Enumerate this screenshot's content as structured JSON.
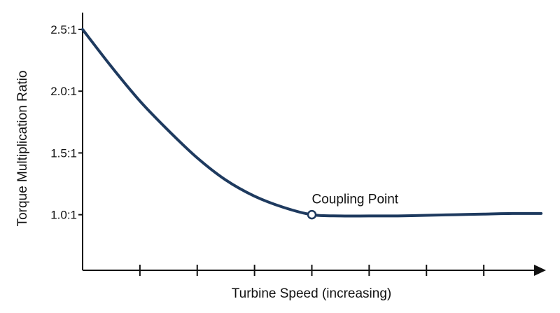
{
  "chart_data": {
    "type": "line",
    "title": "",
    "xlabel": "Turbine Speed (increasing)",
    "ylabel": "Torque Multiplication Ratio",
    "ylim": [
      0.55,
      2.5
    ],
    "xlim": [
      0,
      8
    ],
    "y_ticks": [
      {
        "value": 2.5,
        "label": "2.5:1"
      },
      {
        "value": 2.0,
        "label": "2.0:1"
      },
      {
        "value": 1.5,
        "label": "1.5:1"
      },
      {
        "value": 1.0,
        "label": "1.0:1"
      }
    ],
    "x_ticks": [
      1,
      2,
      3,
      4,
      5,
      6,
      7
    ],
    "x_tick_labels": [],
    "grid": false,
    "line_color": "#1e3a5f",
    "series": [
      {
        "x": [
          0,
          0.5,
          1,
          1.5,
          2,
          2.5,
          3,
          3.5,
          4,
          4.5,
          5,
          5.5,
          6,
          6.5,
          7,
          7.5,
          8
        ],
        "values": [
          2.5,
          2.2,
          1.92,
          1.68,
          1.46,
          1.28,
          1.15,
          1.06,
          1.0,
          0.99,
          0.99,
          0.99,
          0.995,
          1.0,
          1.005,
          1.01,
          1.01
        ]
      }
    ],
    "annotations": [
      {
        "label": "Coupling Point",
        "x": 4,
        "y": 1.0,
        "marker": "open-circle"
      }
    ]
  }
}
